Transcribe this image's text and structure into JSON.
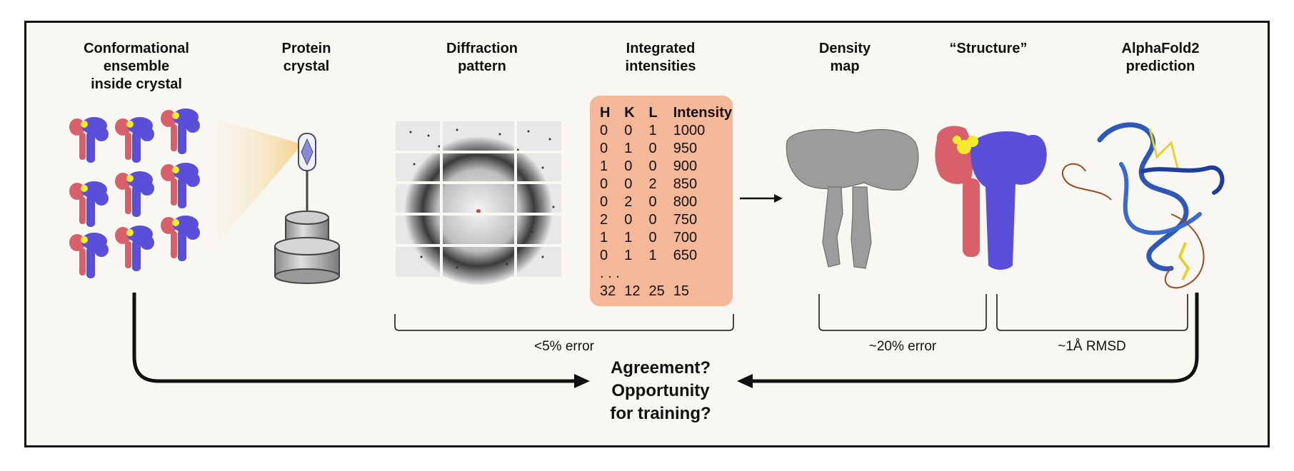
{
  "headers": {
    "ensemble": [
      "Conformational",
      "ensemble",
      "inside crystal"
    ],
    "crystal": [
      "Protein",
      "crystal"
    ],
    "diffraction": [
      "Diffraction",
      "pattern"
    ],
    "intensities": [
      "Integrated",
      "intensities"
    ],
    "density": [
      "Density",
      "map"
    ],
    "structure": [
      "“Structure”"
    ],
    "alphafold": [
      "AlphaFold2",
      "prediction"
    ]
  },
  "table": {
    "columns": [
      "H",
      "K",
      "L",
      "Intensity"
    ],
    "rows": [
      [
        "0",
        "0",
        "1",
        "1000"
      ],
      [
        "0",
        "1",
        "0",
        "950"
      ],
      [
        "1",
        "0",
        "0",
        "900"
      ],
      [
        "0",
        "0",
        "2",
        "850"
      ],
      [
        "0",
        "2",
        "0",
        "800"
      ],
      [
        "2",
        "0",
        "0",
        "750"
      ],
      [
        "1",
        "1",
        "0",
        "700"
      ],
      [
        "0",
        "1",
        "1",
        "650"
      ]
    ],
    "ellipsis": ". . .",
    "last_row": [
      "32",
      "12",
      "25",
      "15"
    ]
  },
  "notes": {
    "error_diffraction": "<5% error",
    "error_density": "~20% error",
    "rmsd": "~1Å RMSD"
  },
  "center_question": [
    "Agreement?",
    "Opportunity",
    "for training?"
  ],
  "colors": {
    "frame_bg": "#f8f7f2",
    "table_bg": "#f4b899",
    "protein_red": "#d9606a",
    "protein_blue": "#5a4fd8",
    "ligand_yellow": "#f2ec2a",
    "density_gray": "#9a9a9a",
    "beam": "#f5d9a4"
  }
}
